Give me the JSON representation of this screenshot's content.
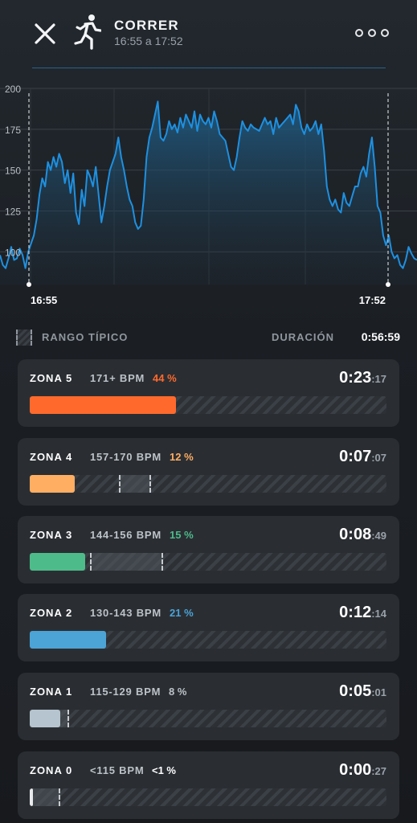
{
  "header": {
    "title": "CORRER",
    "subtitle": "16:55 a 17:52",
    "close_icon": "close-icon",
    "activity_icon": "runner-icon",
    "more_icon": "more-options-icon"
  },
  "chart_data": {
    "type": "area",
    "title": "",
    "xlabel": "",
    "ylabel": "",
    "ylim": [
      80,
      200
    ],
    "yticks": [
      100,
      125,
      150,
      175,
      200
    ],
    "start_label": "16:55",
    "end_label": "17:52",
    "color": "#1e90e0",
    "series": [
      {
        "values": [
          98,
          92,
          90,
          96,
          103,
          95,
          96,
          102,
          98,
          90,
          100,
          105,
          110,
          120,
          135,
          145,
          140,
          155,
          150,
          158,
          152,
          160,
          155,
          142,
          150,
          136,
          148,
          124,
          117,
          138,
          128,
          150,
          146,
          140,
          152,
          135,
          118,
          128,
          140,
          150,
          155,
          160,
          170,
          158,
          150,
          140,
          132,
          128,
          118,
          114,
          116,
          132,
          158,
          170,
          176,
          184,
          192,
          170,
          168,
          172,
          180,
          175,
          178,
          173,
          182,
          176,
          184,
          180,
          176,
          186,
          174,
          184,
          180,
          178,
          182,
          176,
          186,
          180,
          172,
          170,
          168,
          160,
          152,
          150,
          158,
          170,
          180,
          176,
          174,
          178,
          176,
          175,
          174,
          178,
          182,
          178,
          180,
          172,
          182,
          176,
          178,
          180,
          182,
          184,
          178,
          190,
          186,
          176,
          172,
          178,
          174,
          176,
          180,
          172,
          178,
          162,
          140,
          132,
          128,
          132,
          126,
          124,
          136,
          130,
          128,
          134,
          140,
          140,
          148,
          152,
          146,
          160,
          170,
          152,
          128,
          124,
          110,
          104,
          110,
          100,
          96,
          98,
          92,
          90,
          95,
          103,
          99,
          96,
          95
        ]
      }
    ]
  },
  "legend": {
    "typical_label": "RANGO TÍPICO",
    "duration_label": "DURACIÓN",
    "duration_value": "0:56:59"
  },
  "zones": [
    {
      "name": "ZONA 5",
      "range": "171+ BPM",
      "pct": "44 %",
      "pct_value": 44,
      "time_main": "0:23",
      "time_sec": ":17",
      "color": "#ff6a2c",
      "pct_color": "#ff6a2c",
      "fill_fraction": 0.41,
      "typical_from": 0.01,
      "typical_to": 0.23
    },
    {
      "name": "ZONA 4",
      "range": "157-170 BPM",
      "pct": "12 %",
      "pct_value": 12,
      "time_main": "0:07",
      "time_sec": ":07",
      "color": "#ffae62",
      "pct_color": "#ffae62",
      "fill_fraction": 0.125,
      "typical_from": 0.25,
      "typical_to": 0.34
    },
    {
      "name": "ZONA 3",
      "range": "144-156 BPM",
      "pct": "15 %",
      "pct_value": 15,
      "time_main": "0:08",
      "time_sec": ":49",
      "color": "#4dbb8a",
      "pct_color": "#4dbb8a",
      "fill_fraction": 0.155,
      "typical_from": 0.17,
      "typical_to": 0.375
    },
    {
      "name": "ZONA 2",
      "range": "130-143 BPM",
      "pct": "21 %",
      "pct_value": 21,
      "time_main": "0:12",
      "time_sec": ":14",
      "color": "#4ba3d6",
      "pct_color": "#4ba3d6",
      "fill_fraction": 0.215,
      "typical_from": 0.07,
      "typical_to": 0.19
    },
    {
      "name": "ZONA 1",
      "range": "115-129 BPM",
      "pct": "8 %",
      "pct_value": 8,
      "time_main": "0:05",
      "time_sec": ":01",
      "color": "#b6c4cf",
      "pct_color": "#bcc2c8",
      "fill_fraction": 0.085,
      "typical_from": 0.04,
      "typical_to": 0.11
    },
    {
      "name": "ZONA 0",
      "range": "<115 BPM",
      "pct": "<1 %",
      "pct_value": 1,
      "time_main": "0:00",
      "time_sec": ":27",
      "color": "#e8eaec",
      "pct_color": "#ffffff",
      "fill_fraction": 0.008,
      "typical_from": 0.0,
      "typical_to": 0.085
    }
  ]
}
